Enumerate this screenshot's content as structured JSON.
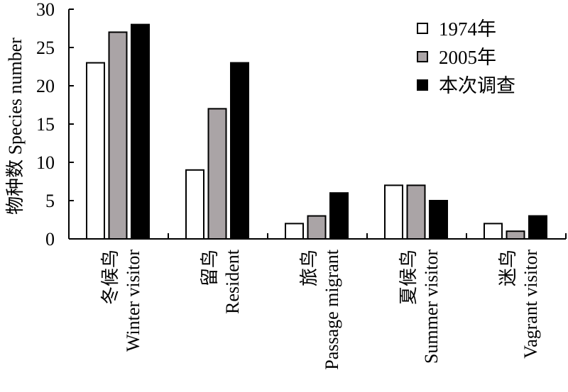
{
  "chart_data": {
    "type": "bar",
    "ylabel": "物种数  Species number",
    "ylim": [
      0,
      30
    ],
    "yticks": [
      0,
      5,
      10,
      15,
      20,
      25,
      30
    ],
    "categories": [
      {
        "cn": "冬候鸟",
        "en": "Winter visitor"
      },
      {
        "cn": "留鸟",
        "en": "Resident"
      },
      {
        "cn": "旅鸟",
        "en": "Passage migrant"
      },
      {
        "cn": "夏候鸟",
        "en": "Summer visitor"
      },
      {
        "cn": "迷鸟",
        "en": "Vagrant visitor"
      }
    ],
    "series": [
      {
        "name": "1974年",
        "color": "#ffffff",
        "values": [
          23,
          9,
          2,
          7,
          2
        ]
      },
      {
        "name": "2005年",
        "color": "#aaa4a6",
        "values": [
          27,
          17,
          3,
          7,
          1
        ]
      },
      {
        "name": "本次调查",
        "color": "#000000",
        "values": [
          28,
          23,
          6,
          5,
          3
        ]
      }
    ],
    "legend_position": "top-right",
    "grid": false
  }
}
